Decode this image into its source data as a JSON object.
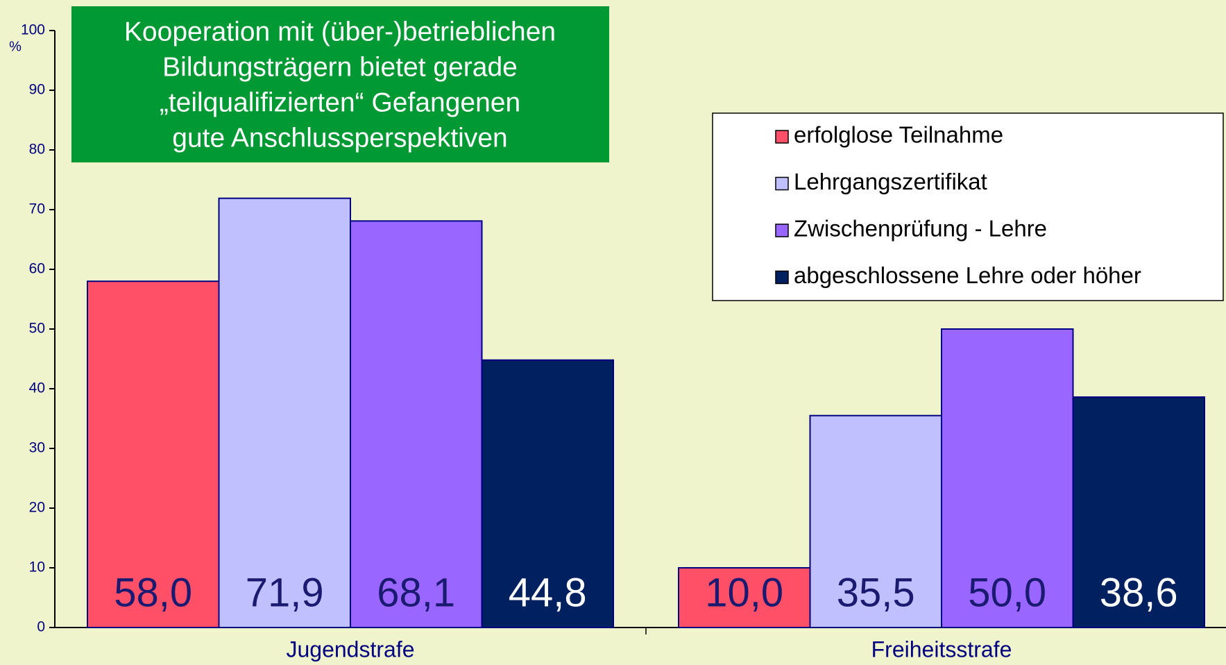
{
  "chart_data": {
    "type": "bar",
    "title": [
      "Kooperation mit  (über-)betrieblichen",
      "Bildungsträgern bietet gerade",
      "„teilqualifizierten“  Gefangenen",
      "gute Anschlussperspektiven"
    ],
    "ylabel": "%",
    "categories": [
      "Jugendstrafe",
      "Freiheitsstrafe"
    ],
    "series": [
      {
        "name": "erfolglose Teilnahme",
        "color": "#ff5068",
        "values": [
          58.0,
          10.0
        ],
        "value_labels": [
          "58,0",
          "10,0"
        ]
      },
      {
        "name": "Lehrgangszertifikat",
        "color": "#c0c0ff",
        "values": [
          71.9,
          35.5
        ],
        "value_labels": [
          "71,9",
          "35,5"
        ]
      },
      {
        "name": "Zwischenprüfung - Lehre",
        "color": "#9966ff",
        "values": [
          68.1,
          50.0
        ],
        "value_labels": [
          "68,1",
          "50,0"
        ]
      },
      {
        "name": "abgeschlossene Lehre oder höher",
        "color": "#002060",
        "values": [
          44.8,
          38.6
        ],
        "value_labels": [
          "44,8",
          "38,6"
        ]
      }
    ],
    "ylim": [
      0,
      100
    ],
    "yticks": [
      0,
      10,
      20,
      30,
      40,
      50,
      60,
      70,
      80,
      90,
      100
    ],
    "legend": "upper right"
  }
}
